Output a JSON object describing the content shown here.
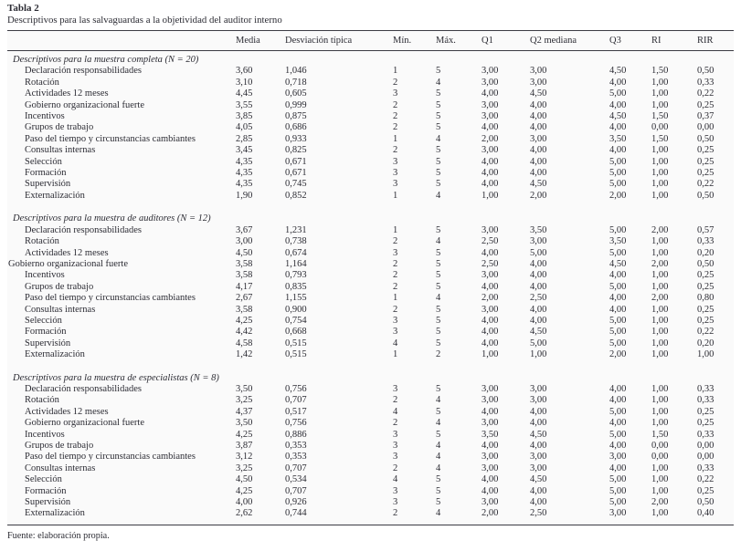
{
  "caption": {
    "label": "Tabla 2",
    "title": "Descriptivos para las salvaguardas a la objetividad del auditor interno"
  },
  "footnote": "Fuente: elaboración propia.",
  "table": {
    "columns": [
      "",
      "Media",
      "Desviación típica",
      "Mín.",
      "Máx.",
      "Q1",
      "Q2 mediana",
      "Q3",
      "RI",
      "RIR"
    ],
    "sections": [
      {
        "header": "Descriptivos para la muestra completa (N = 20)",
        "rows": [
          {
            "label": "Declaración responsabilidades",
            "indent": true,
            "values": [
              "3,60",
              "1,046",
              "1",
              "5",
              "3,00",
              "3,00",
              "4,50",
              "1,50",
              "0,50"
            ]
          },
          {
            "label": "Rotación",
            "indent": true,
            "values": [
              "3,10",
              "0,718",
              "2",
              "4",
              "3,00",
              "3,00",
              "4,00",
              "1,00",
              "0,33"
            ]
          },
          {
            "label": "Actividades 12 meses",
            "indent": true,
            "values": [
              "4,45",
              "0,605",
              "3",
              "5",
              "4,00",
              "4,50",
              "5,00",
              "1,00",
              "0,22"
            ]
          },
          {
            "label": "Gobierno organizacional fuerte",
            "indent": true,
            "values": [
              "3,55",
              "0,999",
              "2",
              "5",
              "3,00",
              "4,00",
              "4,00",
              "1,00",
              "0,25"
            ]
          },
          {
            "label": "Incentivos",
            "indent": true,
            "values": [
              "3,85",
              "0,875",
              "2",
              "5",
              "3,00",
              "4,00",
              "4,50",
              "1,50",
              "0,37"
            ]
          },
          {
            "label": "Grupos de trabajo",
            "indent": true,
            "values": [
              "4,05",
              "0,686",
              "2",
              "5",
              "4,00",
              "4,00",
              "4,00",
              "0,00",
              "0,00"
            ]
          },
          {
            "label": "Paso del tiempo y circunstancias cambiantes",
            "indent": true,
            "values": [
              "2,85",
              "0,933",
              "1",
              "4",
              "2,00",
              "3,00",
              "3,50",
              "1,50",
              "0,50"
            ]
          },
          {
            "label": "Consultas internas",
            "indent": true,
            "values": [
              "3,45",
              "0,825",
              "2",
              "5",
              "3,00",
              "4,00",
              "4,00",
              "1,00",
              "0,25"
            ]
          },
          {
            "label": "Selección",
            "indent": true,
            "values": [
              "4,35",
              "0,671",
              "3",
              "5",
              "4,00",
              "4,00",
              "5,00",
              "1,00",
              "0,25"
            ]
          },
          {
            "label": "Formación",
            "indent": true,
            "values": [
              "4,35",
              "0,671",
              "3",
              "5",
              "4,00",
              "4,00",
              "5,00",
              "1,00",
              "0,25"
            ]
          },
          {
            "label": "Supervisión",
            "indent": true,
            "values": [
              "4,35",
              "0,745",
              "3",
              "5",
              "4,00",
              "4,50",
              "5,00",
              "1,00",
              "0,22"
            ]
          },
          {
            "label": "Externalización",
            "indent": true,
            "values": [
              "1,90",
              "0,852",
              "1",
              "4",
              "1,00",
              "2,00",
              "2,00",
              "1,00",
              "0,50"
            ]
          }
        ]
      },
      {
        "header": "Descriptivos para la muestra de auditores (N = 12)",
        "rows": [
          {
            "label": "Declaración responsabilidades",
            "indent": true,
            "values": [
              "3,67",
              "1,231",
              "1",
              "5",
              "3,00",
              "3,50",
              "5,00",
              "2,00",
              "0,57"
            ]
          },
          {
            "label": "Rotación",
            "indent": true,
            "values": [
              "3,00",
              "0,738",
              "2",
              "4",
              "2,50",
              "3,00",
              "3,50",
              "1,00",
              "0,33"
            ]
          },
          {
            "label": "Actividades 12 meses",
            "indent": true,
            "values": [
              "4,50",
              "0,674",
              "3",
              "5",
              "4,00",
              "5,00",
              "5,00",
              "1,00",
              "0,20"
            ]
          },
          {
            "label": "Gobierno organizacional fuerte",
            "indent": false,
            "values": [
              "3,58",
              "1,164",
              "2",
              "5",
              "2,50",
              "4,00",
              "4,50",
              "2,00",
              "0,50"
            ]
          },
          {
            "label": "Incentivos",
            "indent": true,
            "values": [
              "3,58",
              "0,793",
              "2",
              "5",
              "3,00",
              "4,00",
              "4,00",
              "1,00",
              "0,25"
            ]
          },
          {
            "label": "Grupos de trabajo",
            "indent": true,
            "values": [
              "4,17",
              "0,835",
              "2",
              "5",
              "4,00",
              "4,00",
              "5,00",
              "1,00",
              "0,25"
            ]
          },
          {
            "label": "Paso del tiempo y circunstancias cambiantes",
            "indent": true,
            "values": [
              "2,67",
              "1,155",
              "1",
              "4",
              "2,00",
              "2,50",
              "4,00",
              "2,00",
              "0,80"
            ]
          },
          {
            "label": "Consultas internas",
            "indent": true,
            "values": [
              "3,58",
              "0,900",
              "2",
              "5",
              "3,00",
              "4,00",
              "4,00",
              "1,00",
              "0,25"
            ]
          },
          {
            "label": "Selección",
            "indent": true,
            "values": [
              "4,25",
              "0,754",
              "3",
              "5",
              "4,00",
              "4,00",
              "5,00",
              "1,00",
              "0,25"
            ]
          },
          {
            "label": "Formación",
            "indent": true,
            "values": [
              "4,42",
              "0,668",
              "3",
              "5",
              "4,00",
              "4,50",
              "5,00",
              "1,00",
              "0,22"
            ]
          },
          {
            "label": "Supervisión",
            "indent": true,
            "values": [
              "4,58",
              "0,515",
              "4",
              "5",
              "4,00",
              "5,00",
              "5,00",
              "1,00",
              "0,20"
            ]
          },
          {
            "label": "Externalización",
            "indent": true,
            "values": [
              "1,42",
              "0,515",
              "1",
              "2",
              "1,00",
              "1,00",
              "2,00",
              "1,00",
              "1,00"
            ]
          }
        ]
      },
      {
        "header": "Descriptivos para la muestra de especialistas (N = 8)",
        "rows": [
          {
            "label": "Declaración responsabilidades",
            "indent": true,
            "values": [
              "3,50",
              "0,756",
              "3",
              "5",
              "3,00",
              "3,00",
              "4,00",
              "1,00",
              "0,33"
            ]
          },
          {
            "label": "Rotación",
            "indent": true,
            "values": [
              "3,25",
              "0,707",
              "2",
              "4",
              "3,00",
              "3,00",
              "4,00",
              "1,00",
              "0,33"
            ]
          },
          {
            "label": "Actividades 12 meses",
            "indent": true,
            "values": [
              "4,37",
              "0,517",
              "4",
              "5",
              "4,00",
              "4,00",
              "5,00",
              "1,00",
              "0,25"
            ]
          },
          {
            "label": "Gobierno organizacional fuerte",
            "indent": true,
            "values": [
              "3,50",
              "0,756",
              "2",
              "4",
              "3,00",
              "4,00",
              "4,00",
              "1,00",
              "0,25"
            ]
          },
          {
            "label": "Incentivos",
            "indent": true,
            "values": [
              "4,25",
              "0,886",
              "3",
              "5",
              "3,50",
              "4,50",
              "5,00",
              "1,50",
              "0,33"
            ]
          },
          {
            "label": "Grupos de trabajo",
            "indent": true,
            "values": [
              "3,87",
              "0,353",
              "3",
              "4",
              "4,00",
              "4,00",
              "4,00",
              "0,00",
              "0,00"
            ]
          },
          {
            "label": "Paso del tiempo y circunstancias cambiantes",
            "indent": true,
            "values": [
              "3,12",
              "0,353",
              "3",
              "4",
              "3,00",
              "3,00",
              "3,00",
              "0,00",
              "0,00"
            ]
          },
          {
            "label": "Consultas internas",
            "indent": true,
            "values": [
              "3,25",
              "0,707",
              "2",
              "4",
              "3,00",
              "3,00",
              "4,00",
              "1,00",
              "0,33"
            ]
          },
          {
            "label": "Selección",
            "indent": true,
            "values": [
              "4,50",
              "0,534",
              "4",
              "5",
              "4,00",
              "4,50",
              "5,00",
              "1,00",
              "0,22"
            ]
          },
          {
            "label": "Formación",
            "indent": true,
            "values": [
              "4,25",
              "0,707",
              "3",
              "5",
              "4,00",
              "4,00",
              "5,00",
              "1,00",
              "0,25"
            ]
          },
          {
            "label": "Supervisión",
            "indent": true,
            "values": [
              "4,00",
              "0,926",
              "3",
              "5",
              "3,00",
              "4,00",
              "5,00",
              "2,00",
              "0,50"
            ]
          },
          {
            "label": "Externalización",
            "indent": true,
            "values": [
              "2,62",
              "0,744",
              "2",
              "4",
              "2,00",
              "2,50",
              "3,00",
              "1,00",
              "0,40"
            ]
          }
        ]
      }
    ]
  }
}
